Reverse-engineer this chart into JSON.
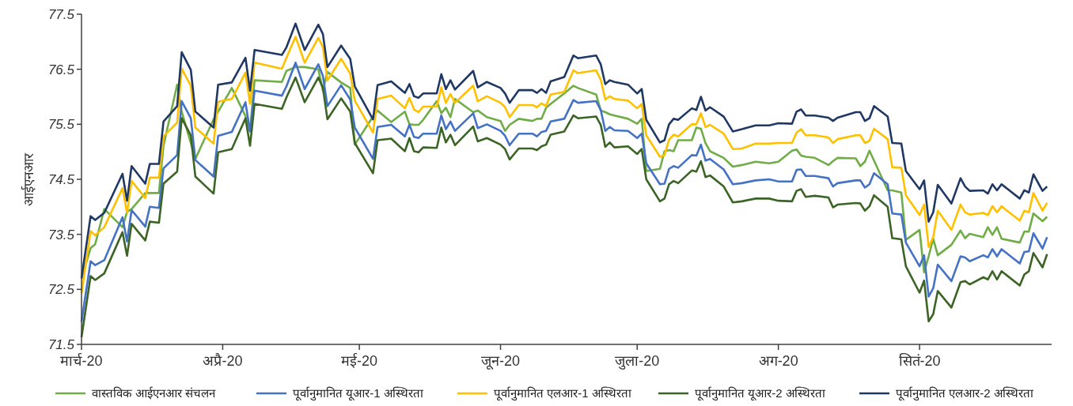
{
  "chart_data": {
    "type": "line",
    "ylabel": "आईएनआर",
    "x": [
      "2020-03-01",
      "2020-03-03",
      "2020-03-04",
      "2020-03-06",
      "2020-03-10",
      "2020-03-11",
      "2020-03-12",
      "2020-03-15",
      "2020-03-16",
      "2020-03-18",
      "2020-03-19",
      "2020-03-22",
      "2020-03-23",
      "2020-03-25",
      "2020-03-26",
      "2020-03-30",
      "2020-03-31",
      "2020-04-03",
      "2020-04-06",
      "2020-04-07",
      "2020-04-08",
      "2020-04-14",
      "2020-04-15",
      "2020-04-17",
      "2020-04-19",
      "2020-04-22",
      "2020-04-23",
      "2020-04-24",
      "2020-04-27",
      "2020-04-29",
      "2020-04-30",
      "2020-05-04",
      "2020-05-05",
      "2020-05-08",
      "2020-05-11",
      "2020-05-12",
      "2020-05-13",
      "2020-05-14",
      "2020-05-15",
      "2020-05-18",
      "2020-05-19",
      "2020-05-20",
      "2020-05-21",
      "2020-05-22",
      "2020-05-26",
      "2020-05-27",
      "2020-05-29",
      "2020-06-01",
      "2020-06-02",
      "2020-06-03",
      "2020-06-05",
      "2020-06-08",
      "2020-06-09",
      "2020-06-10",
      "2020-06-11",
      "2020-06-12",
      "2020-06-15",
      "2020-06-17",
      "2020-06-18",
      "2020-06-22",
      "2020-06-23",
      "2020-06-24",
      "2020-06-25",
      "2020-06-26",
      "2020-06-29",
      "2020-07-01",
      "2020-07-02",
      "2020-07-03",
      "2020-07-06",
      "2020-07-07",
      "2020-07-08",
      "2020-07-09",
      "2020-07-10",
      "2020-07-13",
      "2020-07-14",
      "2020-07-15",
      "2020-07-16",
      "2020-07-17",
      "2020-07-20",
      "2020-07-22",
      "2020-07-24",
      "2020-07-27",
      "2020-07-30",
      "2020-08-01",
      "2020-08-04",
      "2020-08-05",
      "2020-08-06",
      "2020-08-07",
      "2020-08-09",
      "2020-08-12",
      "2020-08-13",
      "2020-08-14",
      "2020-08-18",
      "2020-08-19",
      "2020-08-20",
      "2020-08-21",
      "2020-08-22",
      "2020-08-25",
      "2020-08-26",
      "2020-08-28",
      "2020-08-29",
      "2020-09-01",
      "2020-09-02",
      "2020-09-03",
      "2020-09-04",
      "2020-09-05",
      "2020-09-08",
      "2020-09-10",
      "2020-09-11",
      "2020-09-12",
      "2020-09-15",
      "2020-09-16",
      "2020-09-17",
      "2020-09-18",
      "2020-09-19",
      "2020-09-23",
      "2020-09-24",
      "2020-09-25",
      "2020-09-26",
      "2020-09-28",
      "2020-09-29"
    ],
    "series": [
      {
        "name": "वास्तविक आईएनआर संचलन",
        "color": "#70ad47",
        "values": [
          72.7,
          73.25,
          73.32,
          73.96,
          73.63,
          73.91,
          73.96,
          74.25,
          74.25,
          74.25,
          75.11,
          76.22,
          75.73,
          75.16,
          74.87,
          75.59,
          75.73,
          76.16,
          75.65,
          75.37,
          76.3,
          76.27,
          76.47,
          76.54,
          76.54,
          76.5,
          76.11,
          76.45,
          76.26,
          76.16,
          75.13,
          75.64,
          75.75,
          75.54,
          75.73,
          75.5,
          75.49,
          75.49,
          75.58,
          75.92,
          75.7,
          75.8,
          75.63,
          75.96,
          75.72,
          75.75,
          75.63,
          75.56,
          75.38,
          75.49,
          75.6,
          75.56,
          75.6,
          75.6,
          75.8,
          75.87,
          76.06,
          76.2,
          76.16,
          76.04,
          75.75,
          75.72,
          75.68,
          75.66,
          75.6,
          75.51,
          75.6,
          74.65,
          74.69,
          75.01,
          75.03,
          75.01,
          75.21,
          75.21,
          75.44,
          75.42,
          75.16,
          75.01,
          74.89,
          74.73,
          74.76,
          74.82,
          74.79,
          74.82,
          75.02,
          75.04,
          74.93,
          74.91,
          74.89,
          74.76,
          74.83,
          74.89,
          74.88,
          74.74,
          74.82,
          75.02,
          74.84,
          74.3,
          74.3,
          74.26,
          73.4,
          73.58,
          72.81,
          73.1,
          73.42,
          73.12,
          73.31,
          73.57,
          73.43,
          73.51,
          73.45,
          73.63,
          73.49,
          73.63,
          73.42,
          73.35,
          73.55,
          73.55,
          73.88,
          73.74,
          73.82
        ]
      },
      {
        "name": "पूर्वानुमानित यूआर-1 अस्थिरता",
        "color": "#4472c4",
        "values": [
          71.91,
          73.01,
          72.94,
          73.03,
          73.81,
          73.37,
          73.94,
          73.64,
          74.0,
          73.98,
          74.7,
          74.94,
          75.92,
          75.61,
          74.85,
          74.55,
          75.29,
          75.36,
          75.9,
          75.37,
          76.11,
          76.02,
          76.19,
          76.62,
          76.14,
          76.59,
          76.38,
          75.83,
          76.21,
          75.95,
          75.44,
          74.87,
          75.45,
          75.49,
          75.28,
          75.49,
          75.27,
          75.25,
          75.33,
          75.33,
          75.66,
          75.41,
          75.55,
          75.38,
          75.7,
          75.43,
          75.5,
          75.38,
          75.29,
          75.12,
          75.33,
          75.33,
          75.28,
          75.36,
          75.38,
          75.55,
          75.6,
          75.94,
          75.89,
          75.92,
          75.76,
          75.38,
          75.45,
          75.39,
          75.38,
          75.25,
          75.33,
          74.79,
          74.41,
          74.42,
          74.69,
          74.74,
          74.71,
          74.94,
          74.93,
          75.13,
          74.84,
          74.87,
          74.68,
          74.41,
          74.43,
          74.48,
          74.5,
          74.46,
          74.46,
          74.67,
          74.68,
          74.56,
          74.56,
          74.52,
          74.37,
          74.43,
          74.48,
          74.48,
          74.35,
          74.41,
          74.61,
          74.41,
          73.88,
          73.86,
          73.35,
          72.92,
          73.12,
          72.37,
          72.52,
          72.95,
          72.65,
          73.1,
          73.08,
          73.01,
          73.12,
          73.08,
          73.23,
          73.1,
          73.23,
          72.97,
          73.18,
          73.19,
          73.52,
          73.24,
          73.45
        ]
      },
      {
        "name": "पूर्वानुमानित एलआर-1 अस्थिरता",
        "color": "#ffc000",
        "values": [
          72.43,
          73.56,
          73.48,
          73.63,
          74.34,
          73.89,
          74.47,
          74.16,
          74.53,
          74.53,
          75.28,
          75.53,
          76.51,
          76.2,
          75.44,
          75.15,
          75.91,
          75.96,
          76.44,
          75.87,
          76.62,
          76.51,
          76.71,
          77.09,
          76.62,
          77.07,
          76.9,
          76.3,
          76.69,
          76.42,
          75.93,
          75.35,
          75.96,
          76.02,
          75.79,
          75.98,
          75.77,
          75.72,
          75.82,
          75.82,
          76.17,
          75.89,
          76.05,
          75.89,
          76.2,
          75.92,
          76.01,
          75.89,
          75.81,
          75.63,
          75.85,
          75.85,
          75.81,
          75.88,
          75.83,
          76.04,
          76.09,
          76.48,
          76.43,
          76.48,
          76.31,
          75.95,
          76.01,
          75.96,
          75.93,
          75.79,
          75.87,
          75.3,
          74.91,
          74.94,
          75.22,
          75.31,
          75.28,
          75.5,
          75.5,
          75.7,
          75.45,
          75.49,
          75.33,
          75.05,
          75.06,
          75.15,
          75.15,
          75.16,
          75.16,
          75.35,
          75.41,
          75.3,
          75.3,
          75.26,
          75.16,
          75.23,
          75.3,
          75.3,
          75.16,
          75.2,
          75.42,
          75.23,
          74.72,
          74.71,
          74.21,
          73.85,
          74.04,
          73.27,
          73.45,
          73.93,
          73.58,
          74.04,
          73.9,
          73.86,
          73.89,
          73.85,
          74.01,
          73.9,
          74.01,
          73.75,
          73.93,
          73.9,
          74.25,
          73.93,
          74.07
        ]
      },
      {
        "name": "पूर्वानुमानित यूआर-2 अस्थिरता",
        "color": "#3b6425",
        "values": [
          71.63,
          72.74,
          72.67,
          72.79,
          73.54,
          73.11,
          73.69,
          73.39,
          73.73,
          73.71,
          74.42,
          74.64,
          75.61,
          75.3,
          74.55,
          74.24,
          74.99,
          75.05,
          75.61,
          75.11,
          75.87,
          75.78,
          75.99,
          76.35,
          75.9,
          76.35,
          76.16,
          75.59,
          75.97,
          75.73,
          75.16,
          74.61,
          75.21,
          75.24,
          75.01,
          75.25,
          75.01,
          74.99,
          75.08,
          75.07,
          75.44,
          75.17,
          75.31,
          75.12,
          75.46,
          75.19,
          75.25,
          75.13,
          75.05,
          74.86,
          75.06,
          75.06,
          75.03,
          75.1,
          75.13,
          75.31,
          75.37,
          75.66,
          75.61,
          75.64,
          75.49,
          75.09,
          75.17,
          75.08,
          75.1,
          74.96,
          75.05,
          74.5,
          74.1,
          74.15,
          74.41,
          74.47,
          74.43,
          74.66,
          74.64,
          74.83,
          74.54,
          74.57,
          74.37,
          74.08,
          74.1,
          74.15,
          74.15,
          74.11,
          74.1,
          74.29,
          74.32,
          74.18,
          74.2,
          74.17,
          73.99,
          74.04,
          74.07,
          74.06,
          73.93,
          74.01,
          74.21,
          74.0,
          73.43,
          73.41,
          72.92,
          72.44,
          72.66,
          71.92,
          72.05,
          72.47,
          72.17,
          72.63,
          72.65,
          72.59,
          72.72,
          72.68,
          72.83,
          72.68,
          72.83,
          72.57,
          72.77,
          72.83,
          73.16,
          72.9,
          73.14
        ]
      },
      {
        "name": "पूर्वानुमानित एलआर-2 अस्थिरता",
        "color": "#203864",
        "values": [
          72.7,
          73.83,
          73.76,
          73.89,
          74.6,
          74.11,
          74.74,
          74.42,
          74.78,
          74.78,
          75.55,
          75.83,
          76.81,
          76.49,
          75.73,
          75.44,
          76.22,
          76.26,
          76.71,
          76.11,
          76.85,
          76.76,
          76.9,
          77.33,
          76.85,
          77.31,
          77.14,
          76.54,
          76.93,
          76.69,
          76.19,
          75.59,
          76.21,
          76.28,
          76.07,
          76.23,
          76.01,
          75.98,
          76.06,
          76.06,
          76.41,
          76.14,
          76.3,
          76.13,
          76.47,
          76.17,
          76.27,
          76.16,
          76.06,
          75.89,
          76.12,
          76.12,
          76.07,
          76.14,
          76.07,
          76.28,
          76.36,
          76.75,
          76.7,
          76.75,
          76.59,
          76.23,
          76.3,
          76.27,
          76.22,
          76.06,
          76.14,
          75.58,
          75.17,
          75.21,
          75.5,
          75.6,
          75.58,
          75.79,
          75.76,
          76.0,
          75.75,
          75.81,
          75.64,
          75.37,
          75.41,
          75.48,
          75.48,
          75.52,
          75.51,
          75.73,
          75.77,
          75.66,
          75.66,
          75.62,
          75.56,
          75.62,
          75.72,
          75.72,
          75.56,
          75.61,
          75.83,
          75.64,
          75.16,
          75.15,
          74.65,
          74.32,
          74.48,
          73.73,
          73.9,
          74.4,
          74.06,
          74.52,
          74.37,
          74.29,
          74.3,
          74.24,
          74.41,
          74.3,
          74.41,
          74.15,
          74.3,
          74.26,
          74.59,
          74.29,
          74.37
        ]
      }
    ],
    "xlim": [
      "2020-03-01",
      "2020-09-30"
    ],
    "xticks": [
      {
        "value": "2020-03-01",
        "label": "मार्च-20"
      },
      {
        "value": "2020-04-01",
        "label": "अप्रै-20"
      },
      {
        "value": "2020-05-01",
        "label": "मई-20"
      },
      {
        "value": "2020-06-01",
        "label": "जून-20"
      },
      {
        "value": "2020-07-01",
        "label": "जुला-20"
      },
      {
        "value": "2020-08-01",
        "label": "अग-20"
      },
      {
        "value": "2020-09-01",
        "label": "सितं-20"
      }
    ],
    "ylim": [
      71.5,
      77.5
    ],
    "yticks": [
      71.5,
      72.5,
      73.5,
      74.5,
      75.5,
      76.5,
      77.5
    ],
    "grid": false,
    "legend": "bottom",
    "marker": "none",
    "line_style": "solid"
  }
}
